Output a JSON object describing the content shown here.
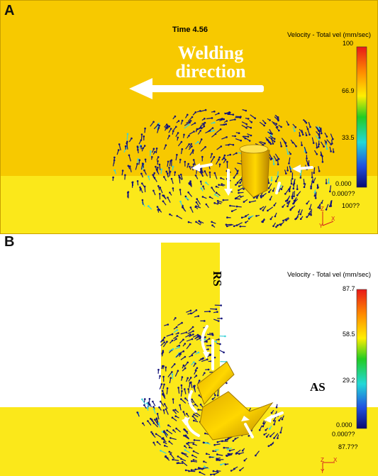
{
  "panel_a": {
    "label": "A",
    "time_label": "Time 4.56",
    "welding_direction": [
      "Welding",
      "direction"
    ],
    "legend": {
      "title": "Velocity - Total vel (mm/sec)",
      "ticks": [
        "100",
        "66.9",
        "33.5",
        "0.000"
      ],
      "extra_lines": [
        "0.000??",
        "100??"
      ]
    },
    "axis_letters": [
      "Z",
      "X",
      "Y"
    ]
  },
  "panel_b": {
    "label": "B",
    "side_labels": {
      "retreating": "RS",
      "advancing": "AS"
    },
    "legend": {
      "title": "Velocity - Total vel (mm/sec)",
      "ticks": [
        "87.7",
        "58.5",
        "29.2",
        "0.000"
      ],
      "extra_lines": [
        "0.000??",
        "87.7??"
      ]
    },
    "axis_letters": [
      "X",
      "Z",
      "Y"
    ]
  },
  "colors": {
    "plate_orange": "#f7c900",
    "plate_yellow": "#fbe81a",
    "arrow_dark": "#14147a",
    "arrow_cyan": "#3cd2d8"
  }
}
